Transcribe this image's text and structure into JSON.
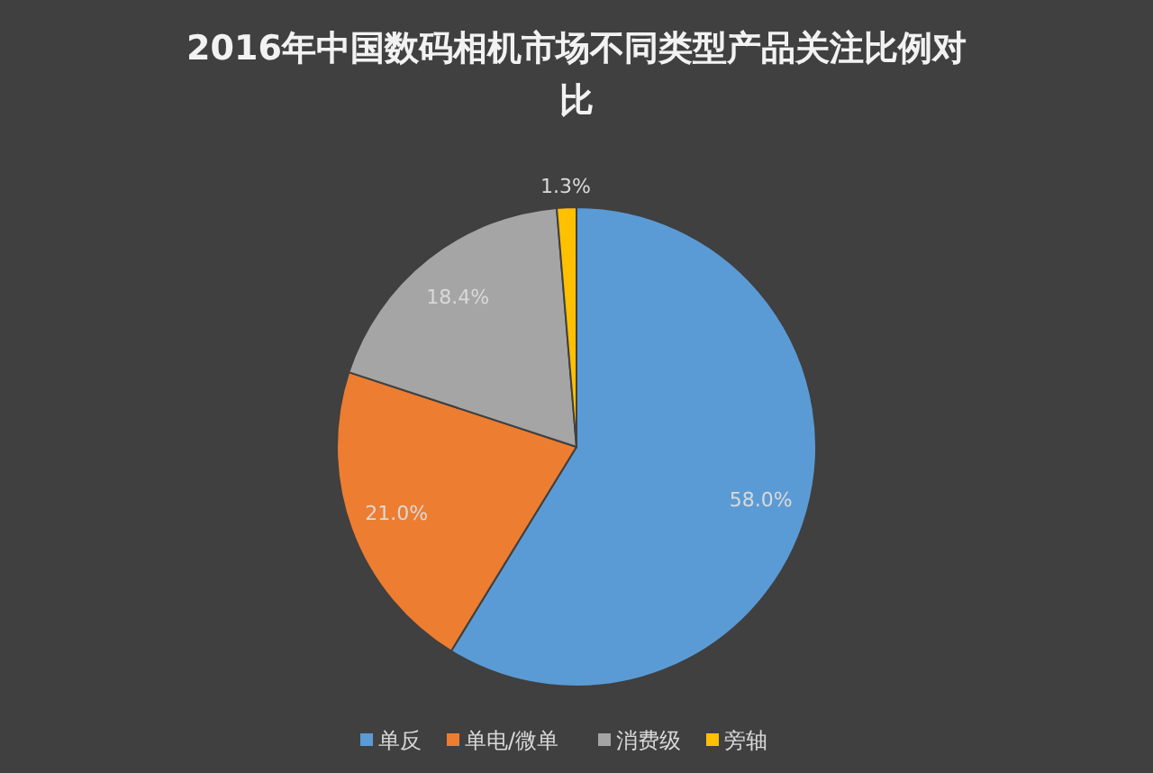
{
  "chart_data": {
    "type": "pie",
    "title": "2016年中国数码相机市场不同类型产品关注比例对比",
    "categories": [
      "单反",
      "单电/微单",
      "消费级",
      "旁轴"
    ],
    "values": [
      58.0,
      21.0,
      18.4,
      1.3
    ],
    "value_labels": [
      "58.0%",
      "21.0%",
      "18.4%",
      "1.3%"
    ],
    "colors": [
      "#5b9bd5",
      "#ed7d31",
      "#a5a5a5",
      "#ffc000"
    ],
    "legend": "bottom"
  }
}
